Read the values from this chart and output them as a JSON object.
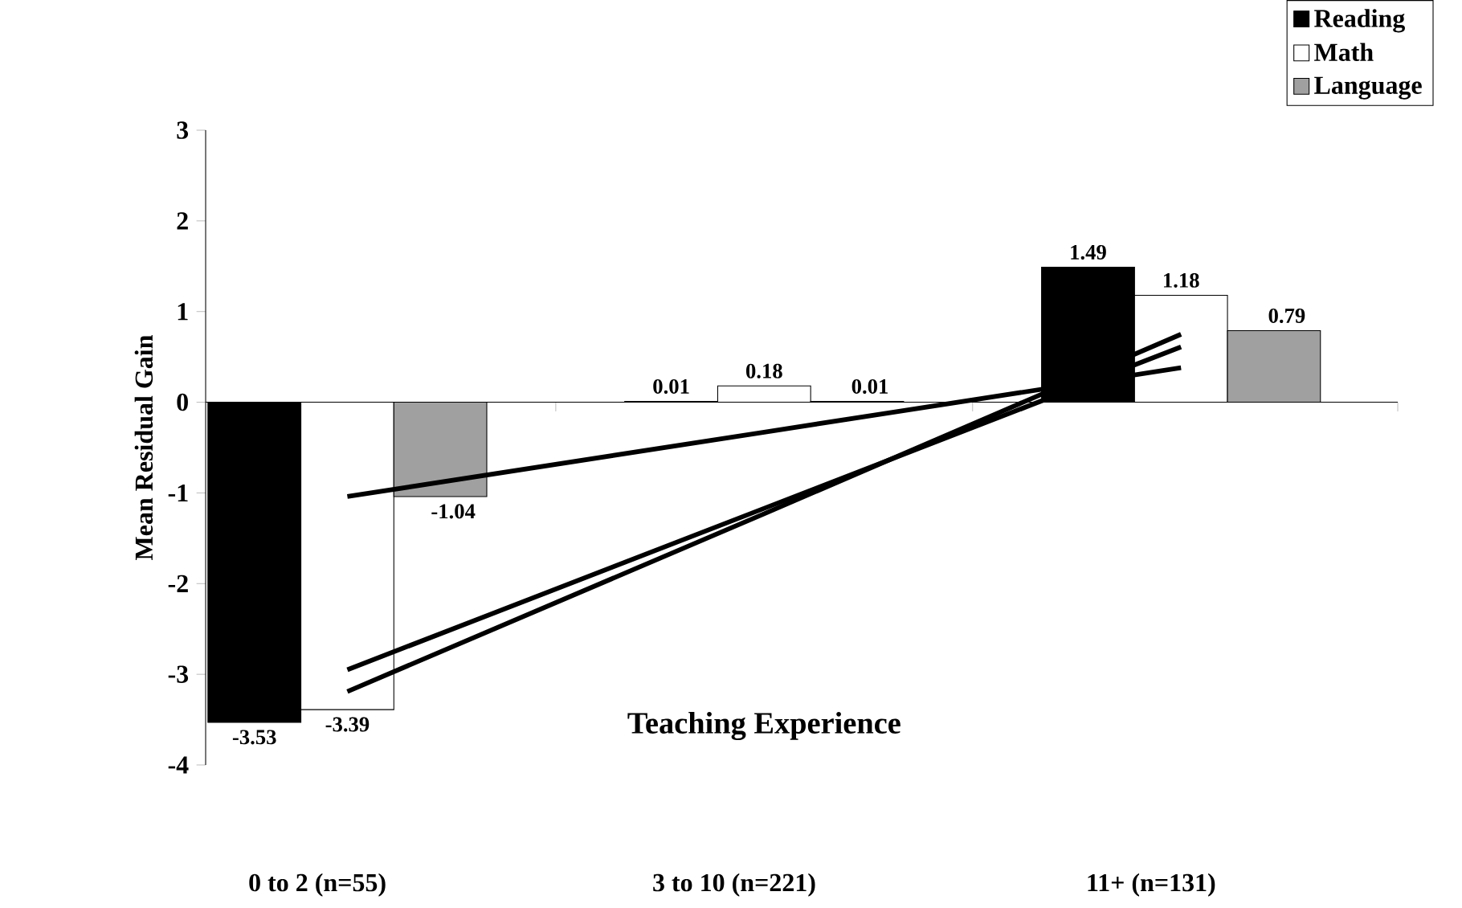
{
  "chart_data": {
    "type": "bar",
    "ylabel": "Mean Residual Gain",
    "xlabel": "Teaching Experience",
    "categories": [
      "0 to 2 (n=55)",
      "3 to 10 (n=221)",
      "11+ (n=131)"
    ],
    "series": [
      {
        "name": "Reading",
        "color": "#000000",
        "values": [
          -3.53,
          0.01,
          1.49
        ],
        "value_labels": [
          "-3.53",
          "0.01",
          "1.49"
        ]
      },
      {
        "name": "Math",
        "color": "#ffffff",
        "values": [
          -3.39,
          0.18,
          1.18
        ],
        "value_labels": [
          "-3.39",
          "0.18",
          "1.18"
        ]
      },
      {
        "name": "Language",
        "color": "#a0a0a0",
        "values": [
          -1.04,
          0.01,
          0.79
        ],
        "value_labels": [
          "-1.04",
          "0.01",
          "0.79"
        ]
      },
      {
        "type": "line",
        "color": "#000000",
        "values": [
          -3.19,
          -1.23,
          0.75
        ]
      },
      {
        "type": "line",
        "color": "#000000",
        "values": [
          -2.95,
          -1.17,
          0.61
        ]
      },
      {
        "type": "line",
        "color": "#000000",
        "values": [
          -1.04,
          -0.33,
          0.38
        ]
      }
    ],
    "ylim": [
      -4,
      3
    ],
    "yticks": [
      -4,
      -3,
      -2,
      -1,
      0,
      1,
      2,
      3
    ],
    "legend": "top right"
  }
}
